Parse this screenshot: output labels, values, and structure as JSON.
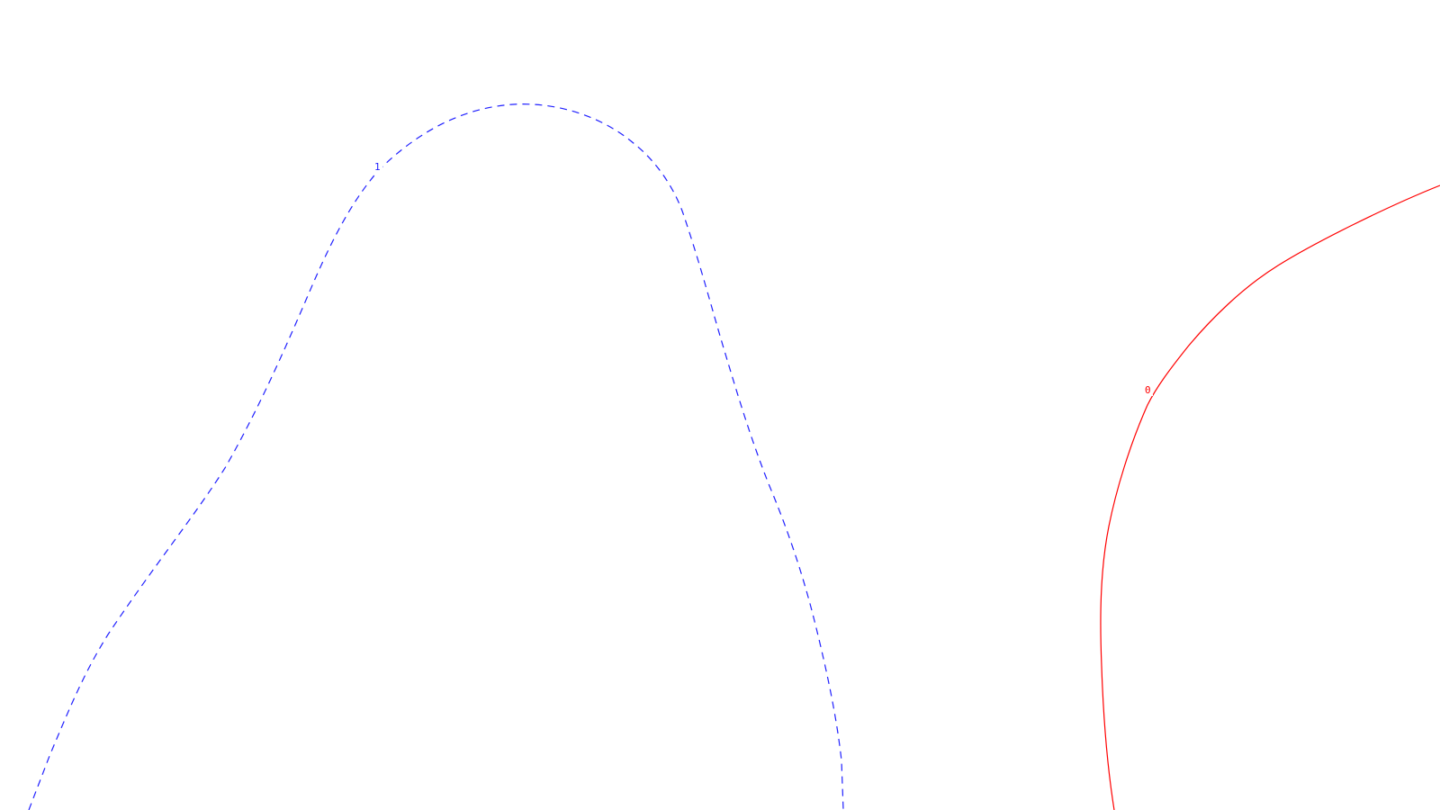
{
  "contours": [
    {
      "label": "1",
      "color": "#2020ff",
      "line_style": "dashed"
    },
    {
      "label": "0",
      "color": "#ff0000",
      "line_style": "solid"
    }
  ]
}
